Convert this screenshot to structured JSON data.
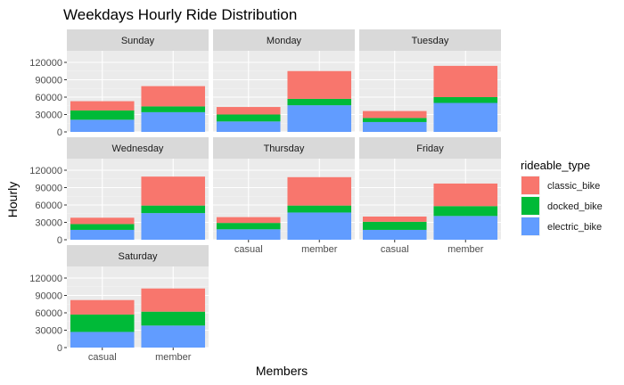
{
  "chart_data": {
    "type": "bar",
    "stacked": true,
    "faceted": true,
    "title": "Weekdays Hourly Ride Distribution",
    "xlabel": "Members",
    "ylabel": "Hourly",
    "categories": [
      "casual",
      "member"
    ],
    "y_ticks": [
      0,
      30000,
      60000,
      90000,
      120000
    ],
    "y_tick_labels": [
      "0",
      "30000",
      "60000",
      "90000",
      "120000"
    ],
    "ylim": [
      0,
      140000
    ],
    "grid": true,
    "legend": {
      "title": "rideable_type",
      "position": "right",
      "items": [
        {
          "name": "classic_bike",
          "color": "#F8766D"
        },
        {
          "name": "docked_bike",
          "color": "#00BA38"
        },
        {
          "name": "electric_bike",
          "color": "#619CFF"
        }
      ]
    },
    "stack_order_bottom_to_top": [
      "electric_bike",
      "docked_bike",
      "classic_bike"
    ],
    "facets": [
      {
        "name": "Sunday",
        "casual": {
          "electric_bike": 21000,
          "docked_bike": 16000,
          "classic_bike": 16000
        },
        "member": {
          "electric_bike": 34000,
          "docked_bike": 10000,
          "classic_bike": 35000
        }
      },
      {
        "name": "Monday",
        "casual": {
          "electric_bike": 18000,
          "docked_bike": 12000,
          "classic_bike": 13000
        },
        "member": {
          "electric_bike": 46000,
          "docked_bike": 11000,
          "classic_bike": 48000
        }
      },
      {
        "name": "Tuesday",
        "casual": {
          "electric_bike": 17000,
          "docked_bike": 7000,
          "classic_bike": 12000
        },
        "member": {
          "electric_bike": 50000,
          "docked_bike": 10000,
          "classic_bike": 54000
        }
      },
      {
        "name": "Wednesday",
        "casual": {
          "electric_bike": 17000,
          "docked_bike": 10000,
          "classic_bike": 11000
        },
        "member": {
          "electric_bike": 46000,
          "docked_bike": 13000,
          "classic_bike": 50000
        }
      },
      {
        "name": "Thursday",
        "casual": {
          "electric_bike": 18000,
          "docked_bike": 11000,
          "classic_bike": 10000
        },
        "member": {
          "electric_bike": 47000,
          "docked_bike": 12000,
          "classic_bike": 49000
        }
      },
      {
        "name": "Friday",
        "casual": {
          "electric_bike": 17000,
          "docked_bike": 14000,
          "classic_bike": 9000
        },
        "member": {
          "electric_bike": 41000,
          "docked_bike": 17000,
          "classic_bike": 39000
        }
      },
      {
        "name": "Saturday",
        "casual": {
          "electric_bike": 27000,
          "docked_bike": 30000,
          "classic_bike": 25000
        },
        "member": {
          "electric_bike": 38000,
          "docked_bike": 24000,
          "classic_bike": 40000
        }
      }
    ]
  }
}
